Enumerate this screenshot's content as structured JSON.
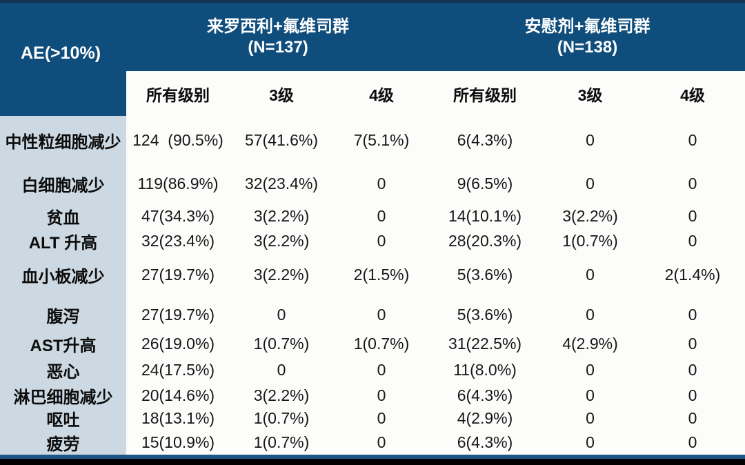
{
  "chart_data": {
    "type": "table",
    "title": "AE(>10%)",
    "corner_header": "AE(>10%)",
    "groups": [
      {
        "title": "来罗西利+氟维司群",
        "n_label": "(N=137)"
      },
      {
        "title": "安慰剂+氟维司群",
        "n_label": "(N=138)"
      }
    ],
    "subheaders": [
      "所有级别",
      "3级",
      "4级",
      "所有级别",
      "3级",
      "4级"
    ],
    "rows": [
      {
        "label": "中性粒细胞减少",
        "cells": [
          "124  (90.5%)",
          "57(41.6%)",
          "7(5.1%)",
          "6(4.3%)",
          "0",
          "0"
        ]
      },
      {
        "label": "白细胞减少",
        "cells": [
          "119(86.9%)",
          "32(23.4%)",
          "0",
          "9(6.5%)",
          "0",
          "0"
        ]
      },
      {
        "label": "贫血",
        "cells": [
          "47(34.3%)",
          "3(2.2%)",
          "0",
          "14(10.1%)",
          "3(2.2%)",
          "0"
        ]
      },
      {
        "label": "ALT 升高",
        "cells": [
          "32(23.4%)",
          "3(2.2%)",
          "0",
          "28(20.3%)",
          "1(0.7%)",
          "0"
        ]
      },
      {
        "label": "血小板减少",
        "cells": [
          "27(19.7%)",
          "3(2.2%)",
          "2(1.5%)",
          "5(3.6%)",
          "0",
          "2(1.4%)"
        ]
      },
      {
        "label": "腹泻",
        "cells": [
          "27(19.7%)",
          "0",
          "0",
          "5(3.6%)",
          "0",
          "0"
        ]
      },
      {
        "label": "AST升高",
        "cells": [
          "26(19.0%)",
          "1(0.7%)",
          "1(0.7%)",
          "31(22.5%)",
          "4(2.9%)",
          "0"
        ]
      },
      {
        "label": "恶心",
        "cells": [
          "24(17.5%)",
          "0",
          "0",
          "11(8.0%)",
          "0",
          "0"
        ]
      },
      {
        "label": "淋巴细胞减少",
        "cells": [
          "20(14.6%)",
          "3(2.2%)",
          "0",
          "6(4.3%)",
          "0",
          "0"
        ]
      },
      {
        "label": "呕吐",
        "cells": [
          "18(13.1%)",
          "1(0.7%)",
          "0",
          "4(2.9%)",
          "0",
          "0"
        ]
      },
      {
        "label": "疲劳",
        "cells": [
          "15(10.9%)",
          "1(0.7%)",
          "0",
          "6(4.3%)",
          "0",
          "0"
        ]
      }
    ],
    "colors": {
      "header_bg": "#0e4d7c",
      "top_strip": "#16334f",
      "label_column_bg": "#cdd9e2",
      "data_bg": "#fcfcfb",
      "header_text": "#ffffff",
      "body_text": "#161616",
      "bottom_line": "#1d5788",
      "bottom_bar": "#000000"
    },
    "layout_hints": {
      "gridlines": false,
      "header_rows": 2,
      "columns": 7
    }
  }
}
